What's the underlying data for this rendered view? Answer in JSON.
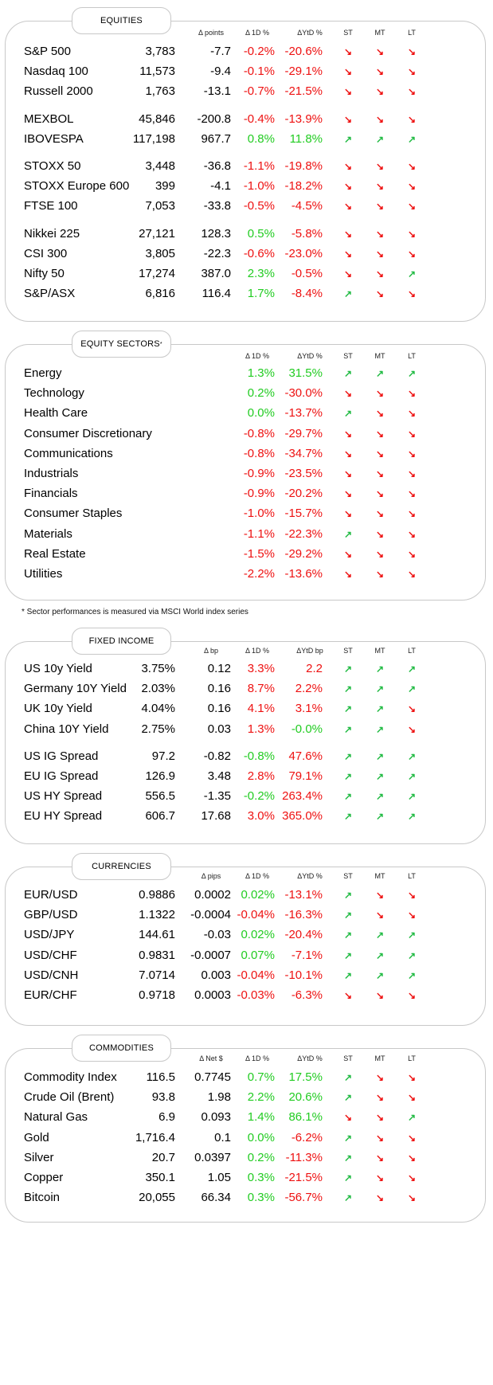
{
  "equities": {
    "title": "EQUITIES",
    "headers": [
      "Δ points",
      "Δ 1D %",
      "ΔYtD %",
      "ST",
      "MT",
      "LT"
    ],
    "groups": [
      [
        {
          "name": "S&P 500",
          "value": "3,783",
          "chg": "-7.7",
          "d1": "-0.2%",
          "ytd": "-20.6%",
          "st": "down",
          "mt": "down",
          "lt": "down"
        },
        {
          "name": "Nasdaq 100",
          "value": "11,573",
          "chg": "-9.4",
          "d1": "-0.1%",
          "ytd": "-29.1%",
          "st": "down",
          "mt": "down",
          "lt": "down"
        },
        {
          "name": "Russell 2000",
          "value": "1,763",
          "chg": "-13.1",
          "d1": "-0.7%",
          "ytd": "-21.5%",
          "st": "down",
          "mt": "down",
          "lt": "down"
        }
      ],
      [
        {
          "name": "MEXBOL",
          "value": "45,846",
          "chg": "-200.8",
          "d1": "-0.4%",
          "ytd": "-13.9%",
          "st": "down",
          "mt": "down",
          "lt": "down"
        },
        {
          "name": "IBOVESPA",
          "value": "117,198",
          "chg": "967.7",
          "d1": "0.8%",
          "ytd": "11.8%",
          "st": "up",
          "mt": "up",
          "lt": "up"
        }
      ],
      [
        {
          "name": "STOXX 50",
          "value": "3,448",
          "chg": "-36.8",
          "d1": "-1.1%",
          "ytd": "-19.8%",
          "st": "down",
          "mt": "down",
          "lt": "down"
        },
        {
          "name": "STOXX Europe 600",
          "value": "399",
          "chg": "-4.1",
          "d1": "-1.0%",
          "ytd": "-18.2%",
          "st": "down",
          "mt": "down",
          "lt": "down"
        },
        {
          "name": "FTSE 100",
          "value": "7,053",
          "chg": "-33.8",
          "d1": "-0.5%",
          "ytd": "-4.5%",
          "st": "down",
          "mt": "down",
          "lt": "down"
        }
      ],
      [
        {
          "name": "Nikkei 225",
          "value": "27,121",
          "chg": "128.3",
          "d1": "0.5%",
          "ytd": "-5.8%",
          "st": "down",
          "mt": "down",
          "lt": "down"
        },
        {
          "name": "CSI 300",
          "value": "3,805",
          "chg": "-22.3",
          "d1": "-0.6%",
          "ytd": "-23.0%",
          "st": "down",
          "mt": "down",
          "lt": "down"
        },
        {
          "name": "Nifty 50",
          "value": "17,274",
          "chg": "387.0",
          "d1": "2.3%",
          "ytd": "-0.5%",
          "st": "down",
          "mt": "down",
          "lt": "up"
        },
        {
          "name": "S&P/ASX",
          "value": "6,816",
          "chg": "116.4",
          "d1": "1.7%",
          "ytd": "-8.4%",
          "st": "up",
          "mt": "down",
          "lt": "down"
        }
      ]
    ]
  },
  "sectors": {
    "title": "EQUITY SECTORS",
    "title_mark": "*",
    "headers": [
      "Δ 1D %",
      "ΔYtD %",
      "ST",
      "MT",
      "LT"
    ],
    "rows": [
      {
        "name": "Energy",
        "d1": "1.3%",
        "ytd": "31.5%",
        "st": "up",
        "mt": "up",
        "lt": "up"
      },
      {
        "name": "Technology",
        "d1": "0.2%",
        "ytd": "-30.0%",
        "st": "down",
        "mt": "down",
        "lt": "down"
      },
      {
        "name": "Health Care",
        "d1": "0.0%",
        "ytd": "-13.7%",
        "st": "up",
        "mt": "down",
        "lt": "down"
      },
      {
        "name": "Consumer Discretionary",
        "d1": "-0.8%",
        "ytd": "-29.7%",
        "st": "down",
        "mt": "down",
        "lt": "down"
      },
      {
        "name": "Communications",
        "d1": "-0.8%",
        "ytd": "-34.7%",
        "st": "down",
        "mt": "down",
        "lt": "down"
      },
      {
        "name": "Industrials",
        "d1": "-0.9%",
        "ytd": "-23.5%",
        "st": "down",
        "mt": "down",
        "lt": "down"
      },
      {
        "name": "Financials",
        "d1": "-0.9%",
        "ytd": "-20.2%",
        "st": "down",
        "mt": "down",
        "lt": "down"
      },
      {
        "name": "Consumer Staples",
        "d1": "-1.0%",
        "ytd": "-15.7%",
        "st": "down",
        "mt": "down",
        "lt": "down"
      },
      {
        "name": "Materials",
        "d1": "-1.1%",
        "ytd": "-22.3%",
        "st": "up",
        "mt": "down",
        "lt": "down"
      },
      {
        "name": "Real Estate",
        "d1": "-1.5%",
        "ytd": "-29.2%",
        "st": "down",
        "mt": "down",
        "lt": "down"
      },
      {
        "name": "Utilities",
        "d1": "-2.2%",
        "ytd": "-13.6%",
        "st": "down",
        "mt": "down",
        "lt": "down"
      }
    ],
    "footnote": "* Sector performances is measured via MSCI World index series"
  },
  "fixed_income": {
    "title": "FIXED INCOME",
    "headers": [
      "Δ bp",
      "Δ 1D %",
      "ΔYtD bp",
      "ST",
      "MT",
      "LT"
    ],
    "groups": [
      [
        {
          "name": "US 10y Yield",
          "value": "3.75%",
          "chg": "0.12",
          "d1": "3.3%",
          "ytd": "2.2",
          "st": "up",
          "mt": "up",
          "lt": "up"
        },
        {
          "name": "Germany 10Y Yield",
          "value": "2.03%",
          "chg": "0.16",
          "d1": "8.7%",
          "ytd": "2.2%",
          "st": "up",
          "mt": "up",
          "lt": "up"
        },
        {
          "name": "UK 10y Yield",
          "value": "4.04%",
          "chg": "0.16",
          "d1": "4.1%",
          "ytd": "3.1%",
          "st": "up",
          "mt": "up",
          "lt": "down"
        },
        {
          "name": "China 10Y Yield",
          "value": "2.75%",
          "chg": "0.03",
          "d1": "1.3%",
          "ytd": "-0.0%",
          "st": "up",
          "mt": "up",
          "lt": "down"
        }
      ],
      [
        {
          "name": "US IG Spread",
          "value": "97.2",
          "chg": "-0.82",
          "d1": "-0.8%",
          "ytd": "47.6%",
          "st": "up",
          "mt": "up",
          "lt": "up"
        },
        {
          "name": "EU IG Spread",
          "value": "126.9",
          "chg": "3.48",
          "d1": "2.8%",
          "ytd": "79.1%",
          "st": "up",
          "mt": "up",
          "lt": "up"
        },
        {
          "name": "US HY Spread",
          "value": "556.5",
          "chg": "-1.35",
          "d1": "-0.2%",
          "ytd": "263.4%",
          "st": "up",
          "mt": "up",
          "lt": "up"
        },
        {
          "name": "EU HY Spread",
          "value": "606.7",
          "chg": "17.68",
          "d1": "3.0%",
          "ytd": "365.0%",
          "st": "up",
          "mt": "up",
          "lt": "up"
        }
      ]
    ]
  },
  "currencies": {
    "title": "CURRENCIES",
    "headers": [
      "Δ pips",
      "Δ 1D %",
      "ΔYtD %",
      "ST",
      "MT",
      "LT"
    ],
    "rows": [
      {
        "name": "EUR/USD",
        "value": "0.9886",
        "chg": "0.0002",
        "d1": "0.02%",
        "ytd": "-13.1%",
        "st": "up",
        "mt": "down",
        "lt": "down"
      },
      {
        "name": "GBP/USD",
        "value": "1.1322",
        "chg": "-0.0004",
        "d1": "-0.04%",
        "ytd": "-16.3%",
        "st": "up",
        "mt": "down",
        "lt": "down"
      },
      {
        "name": "USD/JPY",
        "value": "144.61",
        "chg": "-0.03",
        "d1": "0.02%",
        "ytd": "-20.4%",
        "st": "up",
        "mt": "up",
        "lt": "up"
      },
      {
        "name": "USD/CHF",
        "value": "0.9831",
        "chg": "-0.0007",
        "d1": "0.07%",
        "ytd": "-7.1%",
        "st": "up",
        "mt": "up",
        "lt": "up"
      },
      {
        "name": "USD/CNH",
        "value": "7.0714",
        "chg": "0.003",
        "d1": "-0.04%",
        "ytd": "-10.1%",
        "st": "up",
        "mt": "up",
        "lt": "up"
      },
      {
        "name": "EUR/CHF",
        "value": "0.9718",
        "chg": "0.0003",
        "d1": "-0.03%",
        "ytd": "-6.3%",
        "st": "down",
        "mt": "down",
        "lt": "down"
      }
    ]
  },
  "commodities": {
    "title": "COMMODITIES",
    "headers": [
      "Δ Net $",
      "Δ 1D %",
      "ΔYtD %",
      "ST",
      "MT",
      "LT"
    ],
    "rows": [
      {
        "name": "Commodity Index",
        "value": "116.5",
        "chg": "0.7745",
        "d1": "0.7%",
        "ytd": "17.5%",
        "st": "up",
        "mt": "down",
        "lt": "down"
      },
      {
        "name": "Crude Oil (Brent)",
        "value": "93.8",
        "chg": "1.98",
        "d1": "2.2%",
        "ytd": "20.6%",
        "st": "up",
        "mt": "down",
        "lt": "down"
      },
      {
        "name": "Natural Gas",
        "value": "6.9",
        "chg": "0.093",
        "d1": "1.4%",
        "ytd": "86.1%",
        "st": "down",
        "mt": "down",
        "lt": "up"
      },
      {
        "name": "Gold",
        "value": "1,716.4",
        "chg": "0.1",
        "d1": "0.0%",
        "ytd": "-6.2%",
        "st": "up",
        "mt": "down",
        "lt": "down"
      },
      {
        "name": "Silver",
        "value": "20.7",
        "chg": "0.0397",
        "d1": "0.2%",
        "ytd": "-11.3%",
        "st": "up",
        "mt": "down",
        "lt": "down"
      },
      {
        "name": "Copper",
        "value": "350.1",
        "chg": "1.05",
        "d1": "0.3%",
        "ytd": "-21.5%",
        "st": "up",
        "mt": "down",
        "lt": "down"
      },
      {
        "name": "Bitcoin",
        "value": "20,055",
        "chg": "66.34",
        "d1": "0.3%",
        "ytd": "-56.7%",
        "st": "up",
        "mt": "down",
        "lt": "down"
      }
    ]
  },
  "colors": {
    "positive": "#22cc22",
    "negative": "#ee1111",
    "up_arrow": "#22bb44",
    "down_arrow": "#ee1111",
    "border": "#c8c8c8"
  },
  "icons": {
    "up": "arrow-up-right-icon",
    "down": "arrow-down-right-icon"
  }
}
